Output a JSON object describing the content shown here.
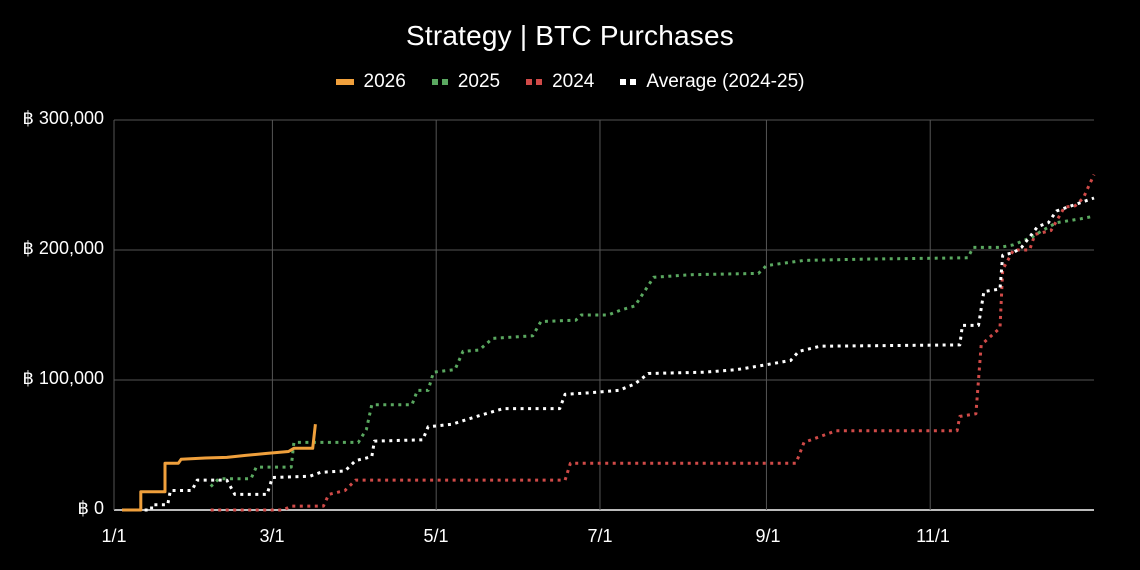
{
  "chart_data": {
    "type": "line",
    "title": "Strategy | BTC Purchases",
    "xlabel": "",
    "ylabel": "",
    "x_axis": {
      "type": "day-of-year",
      "range": [
        0,
        365
      ],
      "ticks": [
        {
          "label": "1/1",
          "day": 0
        },
        {
          "label": "3/1",
          "day": 59
        },
        {
          "label": "5/1",
          "day": 120
        },
        {
          "label": "7/1",
          "day": 181
        },
        {
          "label": "9/1",
          "day": 243
        },
        {
          "label": "11/1",
          "day": 304
        }
      ]
    },
    "y_axis": {
      "range": [
        0,
        300000
      ],
      "ticks": [
        {
          "label": "฿ 0",
          "value": 0
        },
        {
          "label": "฿ 100,000",
          "value": 100000
        },
        {
          "label": "฿ 200,000",
          "value": 200000
        },
        {
          "label": "฿ 300,000",
          "value": 300000
        }
      ]
    },
    "grid": true,
    "legend_position": "top",
    "series": [
      {
        "name": "2026",
        "color": "#f0a03c",
        "style": "solid",
        "points": [
          [
            3,
            0
          ],
          [
            10,
            0
          ],
          [
            10,
            14000
          ],
          [
            19,
            14000
          ],
          [
            19,
            36000
          ],
          [
            24,
            36000
          ],
          [
            25,
            39000
          ],
          [
            34,
            40000
          ],
          [
            42,
            40500
          ],
          [
            49,
            42000
          ],
          [
            57,
            43500
          ],
          [
            65,
            45000
          ],
          [
            67,
            47500
          ],
          [
            74,
            47500
          ],
          [
            75,
            66000
          ]
        ]
      },
      {
        "name": "2025",
        "color": "#5aa860",
        "style": "dotted",
        "points": [
          [
            36,
            18000
          ],
          [
            39,
            24000
          ],
          [
            51,
            24000
          ],
          [
            53,
            33000
          ],
          [
            66,
            33000
          ],
          [
            67,
            52000
          ],
          [
            91,
            52000
          ],
          [
            94,
            62000
          ],
          [
            96,
            81000
          ],
          [
            111,
            81000
          ],
          [
            113,
            92000
          ],
          [
            117,
            92000
          ],
          [
            119,
            106000
          ],
          [
            127,
            108000
          ],
          [
            130,
            122000
          ],
          [
            136,
            123000
          ],
          [
            141,
            132000
          ],
          [
            156,
            134000
          ],
          [
            159,
            145000
          ],
          [
            172,
            146000
          ],
          [
            174,
            150000
          ],
          [
            184,
            150000
          ],
          [
            189,
            154000
          ],
          [
            194,
            157000
          ],
          [
            201,
            179000
          ],
          [
            215,
            181000
          ],
          [
            240,
            182000
          ],
          [
            243,
            188000
          ],
          [
            250,
            190000
          ],
          [
            257,
            192000
          ],
          [
            280,
            193000
          ],
          [
            318,
            194000
          ],
          [
            320,
            202000
          ],
          [
            330,
            202000
          ],
          [
            335,
            204000
          ],
          [
            342,
            210000
          ],
          [
            345,
            214000
          ],
          [
            351,
            221000
          ],
          [
            360,
            224000
          ],
          [
            365,
            226000
          ]
        ]
      },
      {
        "name": "2024",
        "color": "#d04a48",
        "style": "dotted",
        "points": [
          [
            36,
            0
          ],
          [
            63,
            0
          ],
          [
            66,
            3000
          ],
          [
            78,
            3000
          ],
          [
            80,
            12000
          ],
          [
            86,
            15000
          ],
          [
            90,
            23000
          ],
          [
            168,
            23000
          ],
          [
            170,
            36000
          ],
          [
            254,
            36000
          ],
          [
            257,
            52000
          ],
          [
            265,
            58000
          ],
          [
            269,
            61000
          ],
          [
            314,
            61000
          ],
          [
            315,
            72000
          ],
          [
            321,
            74000
          ],
          [
            323,
            127000
          ],
          [
            330,
            140000
          ],
          [
            331,
            185000
          ],
          [
            335,
            200000
          ],
          [
            339,
            200000
          ],
          [
            341,
            200000
          ],
          [
            343,
            212000
          ],
          [
            349,
            215000
          ],
          [
            354,
            233000
          ],
          [
            358,
            234000
          ],
          [
            361,
            240000
          ],
          [
            365,
            258000
          ]
        ]
      },
      {
        "name": "Average (2024-25)",
        "color": "#ffffff",
        "style": "dotted",
        "points": [
          [
            3,
            0
          ],
          [
            14,
            0
          ],
          [
            14,
            4000
          ],
          [
            20,
            4000
          ],
          [
            21,
            15000
          ],
          [
            29,
            15000
          ],
          [
            31,
            23000
          ],
          [
            42,
            23000
          ],
          [
            45,
            12000
          ],
          [
            57,
            12000
          ],
          [
            59,
            25000
          ],
          [
            73,
            26000
          ],
          [
            77,
            29000
          ],
          [
            86,
            30000
          ],
          [
            90,
            38000
          ],
          [
            96,
            41000
          ],
          [
            97,
            53000
          ],
          [
            115,
            54000
          ],
          [
            117,
            64000
          ],
          [
            126,
            66000
          ],
          [
            132,
            70000
          ],
          [
            140,
            75000
          ],
          [
            145,
            78000
          ],
          [
            166,
            78000
          ],
          [
            168,
            89000
          ],
          [
            176,
            90000
          ],
          [
            188,
            92000
          ],
          [
            194,
            97000
          ],
          [
            199,
            105000
          ],
          [
            220,
            106000
          ],
          [
            232,
            108000
          ],
          [
            238,
            110000
          ],
          [
            252,
            115000
          ],
          [
            255,
            122000
          ],
          [
            263,
            126000
          ],
          [
            315,
            127000
          ],
          [
            316,
            142000
          ],
          [
            322,
            142000
          ],
          [
            324,
            168000
          ],
          [
            330,
            170000
          ],
          [
            331,
            196000
          ],
          [
            335,
            198000
          ],
          [
            338,
            202000
          ],
          [
            341,
            210000
          ],
          [
            344,
            218000
          ],
          [
            348,
            221000
          ],
          [
            351,
            230000
          ],
          [
            358,
            235000
          ],
          [
            365,
            240000
          ]
        ]
      }
    ]
  },
  "legend": [
    {
      "label": "2026",
      "color": "#f0a03c",
      "style": "solid"
    },
    {
      "label": "2025",
      "color": "#5aa860",
      "style": "dotted"
    },
    {
      "label": "2024",
      "color": "#d04a48",
      "style": "dotted"
    },
    {
      "label": "Average (2024-25)",
      "color": "#ffffff",
      "style": "dotted"
    }
  ],
  "colors": {
    "background": "#000000",
    "grid": "#555555",
    "axis": "#bbbbbb",
    "text": "#ffffff"
  }
}
